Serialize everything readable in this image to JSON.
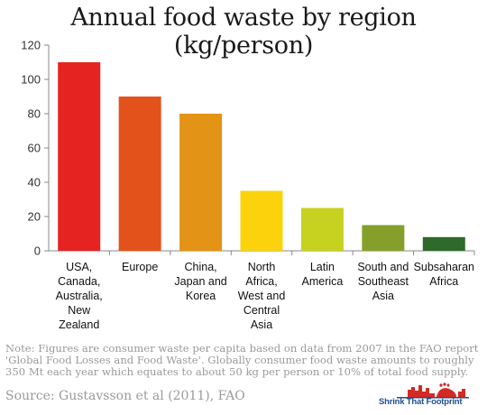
{
  "chart_data": {
    "type": "bar",
    "title": "Annual food waste by region (kg/person)",
    "categories": [
      [
        "USA,",
        "Canada,",
        "Australia,",
        "New",
        "Zealand"
      ],
      [
        "Europe"
      ],
      [
        "China,",
        "Japan and",
        "Korea"
      ],
      [
        "North",
        "Africa,",
        "West and",
        "Central",
        "Asia"
      ],
      [
        "Latin",
        "America"
      ],
      [
        "South and",
        "Southeast",
        "Asia"
      ],
      [
        "Subsaharan",
        "Africa"
      ]
    ],
    "values": [
      110,
      90,
      80,
      35,
      25,
      15,
      8
    ],
    "colors": [
      "#e52421",
      "#e4521b",
      "#e39316",
      "#fcd20c",
      "#c6d21f",
      "#84a02a",
      "#2e6a2a"
    ],
    "ylim": [
      0,
      120
    ],
    "yticks": [
      "0",
      "20",
      "40",
      "60",
      "80",
      "100",
      "120"
    ],
    "xlabel": "",
    "ylabel": "",
    "grid": false
  },
  "note": "Note: Figures are consumer waste per capita based on data from 2007 in the FAO report 'Global Food Losses and Food Waste'.  Globally consumer food waste amounts to roughly 350 Mt each year which equates to about 50 kg per person or 10% of total food supply.",
  "source": "Source:  Gustavsson et al (2011), FAO",
  "logo": {
    "text": "Shrink That Footprint",
    "icon": "footprint-skyline-logo"
  }
}
